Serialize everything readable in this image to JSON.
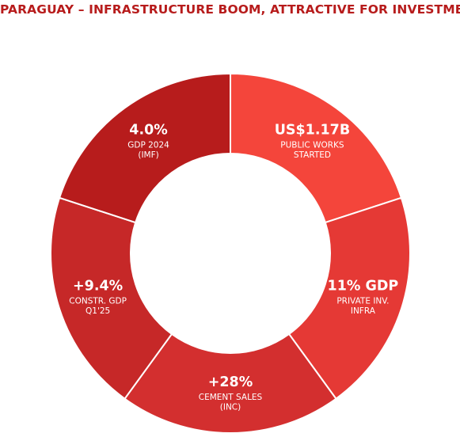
{
  "title": "PARAGUAY – INFRASTRUCTURE BOOM, ATTRACTIVE FOR INVESTMENT",
  "chart_data": {
    "type": "pie",
    "style": "donut",
    "title": "PARAGUAY – INFRASTRUCTURE BOOM, ATTRACTIVE FOR INVESTMENT",
    "segments": [
      {
        "value_label": "US$1.17B",
        "label_lines": [
          "PUBLIC WORKS",
          "STARTED"
        ],
        "share": 0.16667,
        "color": "#f4453b"
      },
      {
        "value_label": "11% GDP",
        "label_lines": [
          "PRIVATE INV.",
          "INFRA"
        ],
        "share": 0.16667,
        "color": "#e53935"
      },
      {
        "value_label": "+28%",
        "label_lines": [
          "CEMENT SALES",
          "(INC)"
        ],
        "share": 0.16667,
        "color": "#d32f2f"
      },
      {
        "value_label": "+9.4%",
        "label_lines": [
          "CONSTR. GDP",
          "Q1'25"
        ],
        "share": 0.16667,
        "color": "#c62828"
      },
      {
        "value_label": "4.0%",
        "label_lines": [
          "GDP 2024",
          "(IMF)"
        ],
        "share": 0.16667,
        "color": "#b71c1c"
      }
    ]
  }
}
